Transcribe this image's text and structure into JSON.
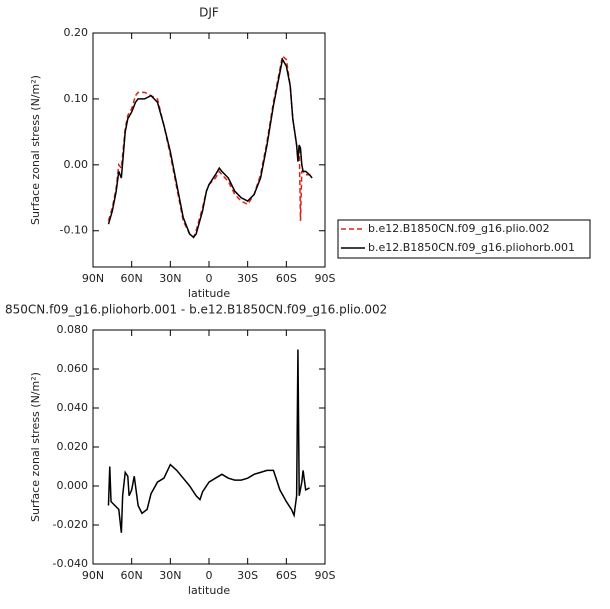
{
  "chart_data": [
    {
      "type": "line",
      "title": "DJF",
      "xlabel": "latitude",
      "ylabel": "Surface zonal stress (N/m²)",
      "x": [
        78,
        75,
        72,
        70,
        68,
        65,
        63,
        60,
        57,
        55,
        50,
        45,
        40,
        35,
        30,
        25,
        20,
        15,
        12,
        10,
        5,
        2,
        0,
        -5,
        -8,
        -10,
        -15,
        -20,
        -25,
        -30,
        -35,
        -40,
        -45,
        -50,
        -55,
        -57,
        -60,
        -63,
        -65,
        -68,
        -69,
        -70,
        -71,
        -72,
        -73,
        -75,
        -78,
        -80
      ],
      "series": [
        {
          "name": "b.e12.B1850CN.f09_g16.plio.002",
          "color": "#e0201b",
          "line_style": "dashed",
          "values": [
            -0.085,
            -0.065,
            -0.035,
            0.0,
            -0.005,
            0.055,
            0.075,
            0.085,
            0.105,
            0.11,
            0.11,
            0.105,
            0.1,
            0.06,
            0.015,
            -0.035,
            -0.085,
            -0.105,
            -0.11,
            -0.1,
            -0.065,
            -0.04,
            -0.03,
            -0.02,
            -0.01,
            -0.015,
            -0.025,
            -0.045,
            -0.055,
            -0.06,
            -0.045,
            -0.015,
            0.035,
            0.095,
            0.145,
            0.165,
            0.16,
            0.12,
            0.07,
            0.03,
            0.01,
            0.03,
            -0.085,
            -0.01,
            -0.01,
            -0.015,
            -0.015,
            -0.02
          ]
        },
        {
          "name": "b.e12.B1850CN.f09_g16.pliohorb.001",
          "color": "#000000",
          "line_style": "solid",
          "values": [
            -0.09,
            -0.07,
            -0.04,
            -0.01,
            -0.02,
            0.05,
            0.07,
            0.08,
            0.095,
            0.1,
            0.1,
            0.105,
            0.095,
            0.06,
            0.02,
            -0.03,
            -0.08,
            -0.105,
            -0.11,
            -0.105,
            -0.07,
            -0.04,
            -0.03,
            -0.015,
            -0.005,
            -0.01,
            -0.02,
            -0.04,
            -0.05,
            -0.055,
            -0.045,
            -0.02,
            0.03,
            0.09,
            0.14,
            0.16,
            0.15,
            0.12,
            0.07,
            0.03,
            0.005,
            0.03,
            0.025,
            0.0,
            -0.01,
            -0.01,
            -0.015,
            -0.02
          ]
        }
      ],
      "xlim": [
        90,
        -90
      ],
      "xticks": [
        {
          "value": 90,
          "label": "90N"
        },
        {
          "value": 60,
          "label": "60N"
        },
        {
          "value": 30,
          "label": "30N"
        },
        0,
        {
          "value": -30,
          "label": "30S"
        },
        {
          "value": -60,
          "label": "60S"
        },
        {
          "value": -90,
          "label": "90S"
        }
      ],
      "ylim": [
        -0.155,
        0.2
      ],
      "yticks": [
        {
          "value": -0.1,
          "label": "-0.10"
        },
        {
          "value": 0,
          "label": "0.00"
        },
        {
          "value": 0.1,
          "label": "0.10"
        },
        {
          "value": 0.2,
          "label": "0.20"
        }
      ],
      "legend": "outside-right"
    },
    {
      "type": "line",
      "title": "850CN.f09_g16.pliohorb.001 - b.e12.B1850CN.f09_g16.plio.002",
      "xlabel": "latitude",
      "ylabel": "Surface zonal stress (N/m²)",
      "x": [
        78,
        77,
        76,
        73,
        70,
        68,
        67,
        65,
        63,
        62,
        60,
        58,
        55,
        52,
        48,
        45,
        40,
        35,
        30,
        25,
        20,
        15,
        10,
        7,
        5,
        0,
        -5,
        -10,
        -15,
        -20,
        -25,
        -30,
        -35,
        -40,
        -45,
        -50,
        -55,
        -60,
        -64,
        -66,
        -68,
        -69,
        -70,
        -72,
        -73,
        -75,
        -78
      ],
      "series": [
        {
          "color": "#000000",
          "line_style": "solid",
          "values": [
            -0.01,
            0.01,
            -0.008,
            -0.01,
            -0.012,
            -0.024,
            -0.005,
            0.007,
            0.005,
            -0.005,
            -0.002,
            0.005,
            -0.01,
            -0.014,
            -0.012,
            -0.004,
            0.002,
            0.004,
            0.011,
            0.008,
            0.004,
            0.0,
            -0.005,
            -0.007,
            -0.003,
            0.002,
            0.004,
            0.006,
            0.004,
            0.003,
            0.003,
            0.004,
            0.006,
            0.007,
            0.008,
            0.008,
            -0.002,
            -0.008,
            -0.012,
            -0.015,
            -0.005,
            0.07,
            -0.005,
            0.002,
            0.008,
            -0.002,
            -0.001
          ]
        }
      ],
      "xlim": [
        90,
        -90
      ],
      "xticks": [
        {
          "value": 90,
          "label": "90N"
        },
        {
          "value": 60,
          "label": "60N"
        },
        {
          "value": 30,
          "label": "30N"
        },
        0,
        {
          "value": -30,
          "label": "30S"
        },
        {
          "value": -60,
          "label": "60S"
        },
        {
          "value": -90,
          "label": "90S"
        }
      ],
      "ylim": [
        -0.04,
        0.08
      ],
      "yticks": [
        {
          "value": -0.04,
          "label": "-0.040"
        },
        {
          "value": -0.02,
          "label": "-0.020"
        },
        {
          "value": 0,
          "label": "0.000"
        },
        {
          "value": 0.02,
          "label": "0.020"
        },
        {
          "value": 0.04,
          "label": "0.040"
        },
        {
          "value": 0.06,
          "label": "0.060"
        },
        {
          "value": 0.08,
          "label": "0.080"
        }
      ]
    }
  ]
}
